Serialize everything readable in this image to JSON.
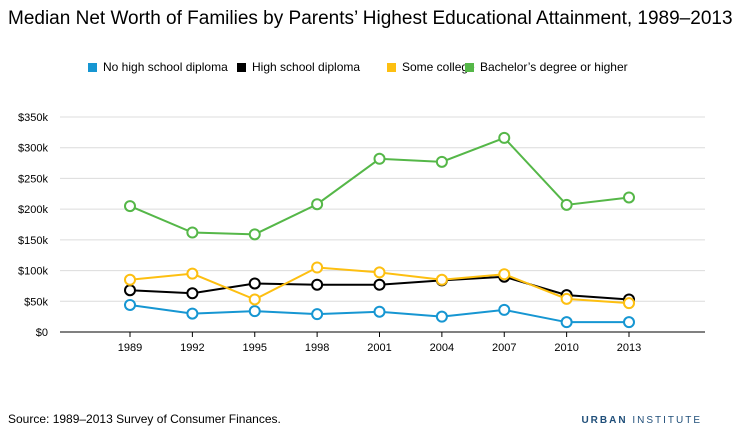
{
  "chart_data": {
    "type": "line",
    "title": "Median Net Worth of Families by Parents’ Highest Educational Attainment, 1989–2013",
    "xlabel": "",
    "ylabel": "",
    "categories": [
      "1989",
      "1992",
      "1995",
      "1998",
      "2001",
      "2004",
      "2007",
      "2010",
      "2013"
    ],
    "ylim": [
      0,
      350000
    ],
    "yticks": [
      0,
      50000,
      100000,
      150000,
      200000,
      250000,
      300000,
      350000
    ],
    "ytick_labels": [
      "$0",
      "$50k",
      "$100k",
      "$150k",
      "$200k",
      "$250k",
      "$300k",
      "$350k"
    ],
    "grid": "horizontal",
    "legend_position": "top",
    "series": [
      {
        "name": "No high school diploma",
        "color": "#1696d2",
        "values": [
          44000,
          30000,
          34000,
          29000,
          33000,
          25000,
          36000,
          16000,
          16000
        ]
      },
      {
        "name": "High school diploma",
        "color": "#000000",
        "values": [
          68000,
          63000,
          79000,
          77000,
          77000,
          84000,
          90000,
          60000,
          53000
        ]
      },
      {
        "name": "Some college",
        "color": "#fdbf11",
        "values": [
          85000,
          95000,
          53000,
          105000,
          97000,
          85000,
          94000,
          54000,
          47000
        ]
      },
      {
        "name": "Bachelor’s degree or higher",
        "color": "#55b748",
        "values": [
          205000,
          162000,
          159000,
          208000,
          282000,
          277000,
          316000,
          207000,
          219000
        ]
      }
    ]
  },
  "source": "Source: 1989–2013 Survey of Consumer Finances.",
  "brand": {
    "bold": "URBAN",
    "rest": " INSTITUTE"
  }
}
